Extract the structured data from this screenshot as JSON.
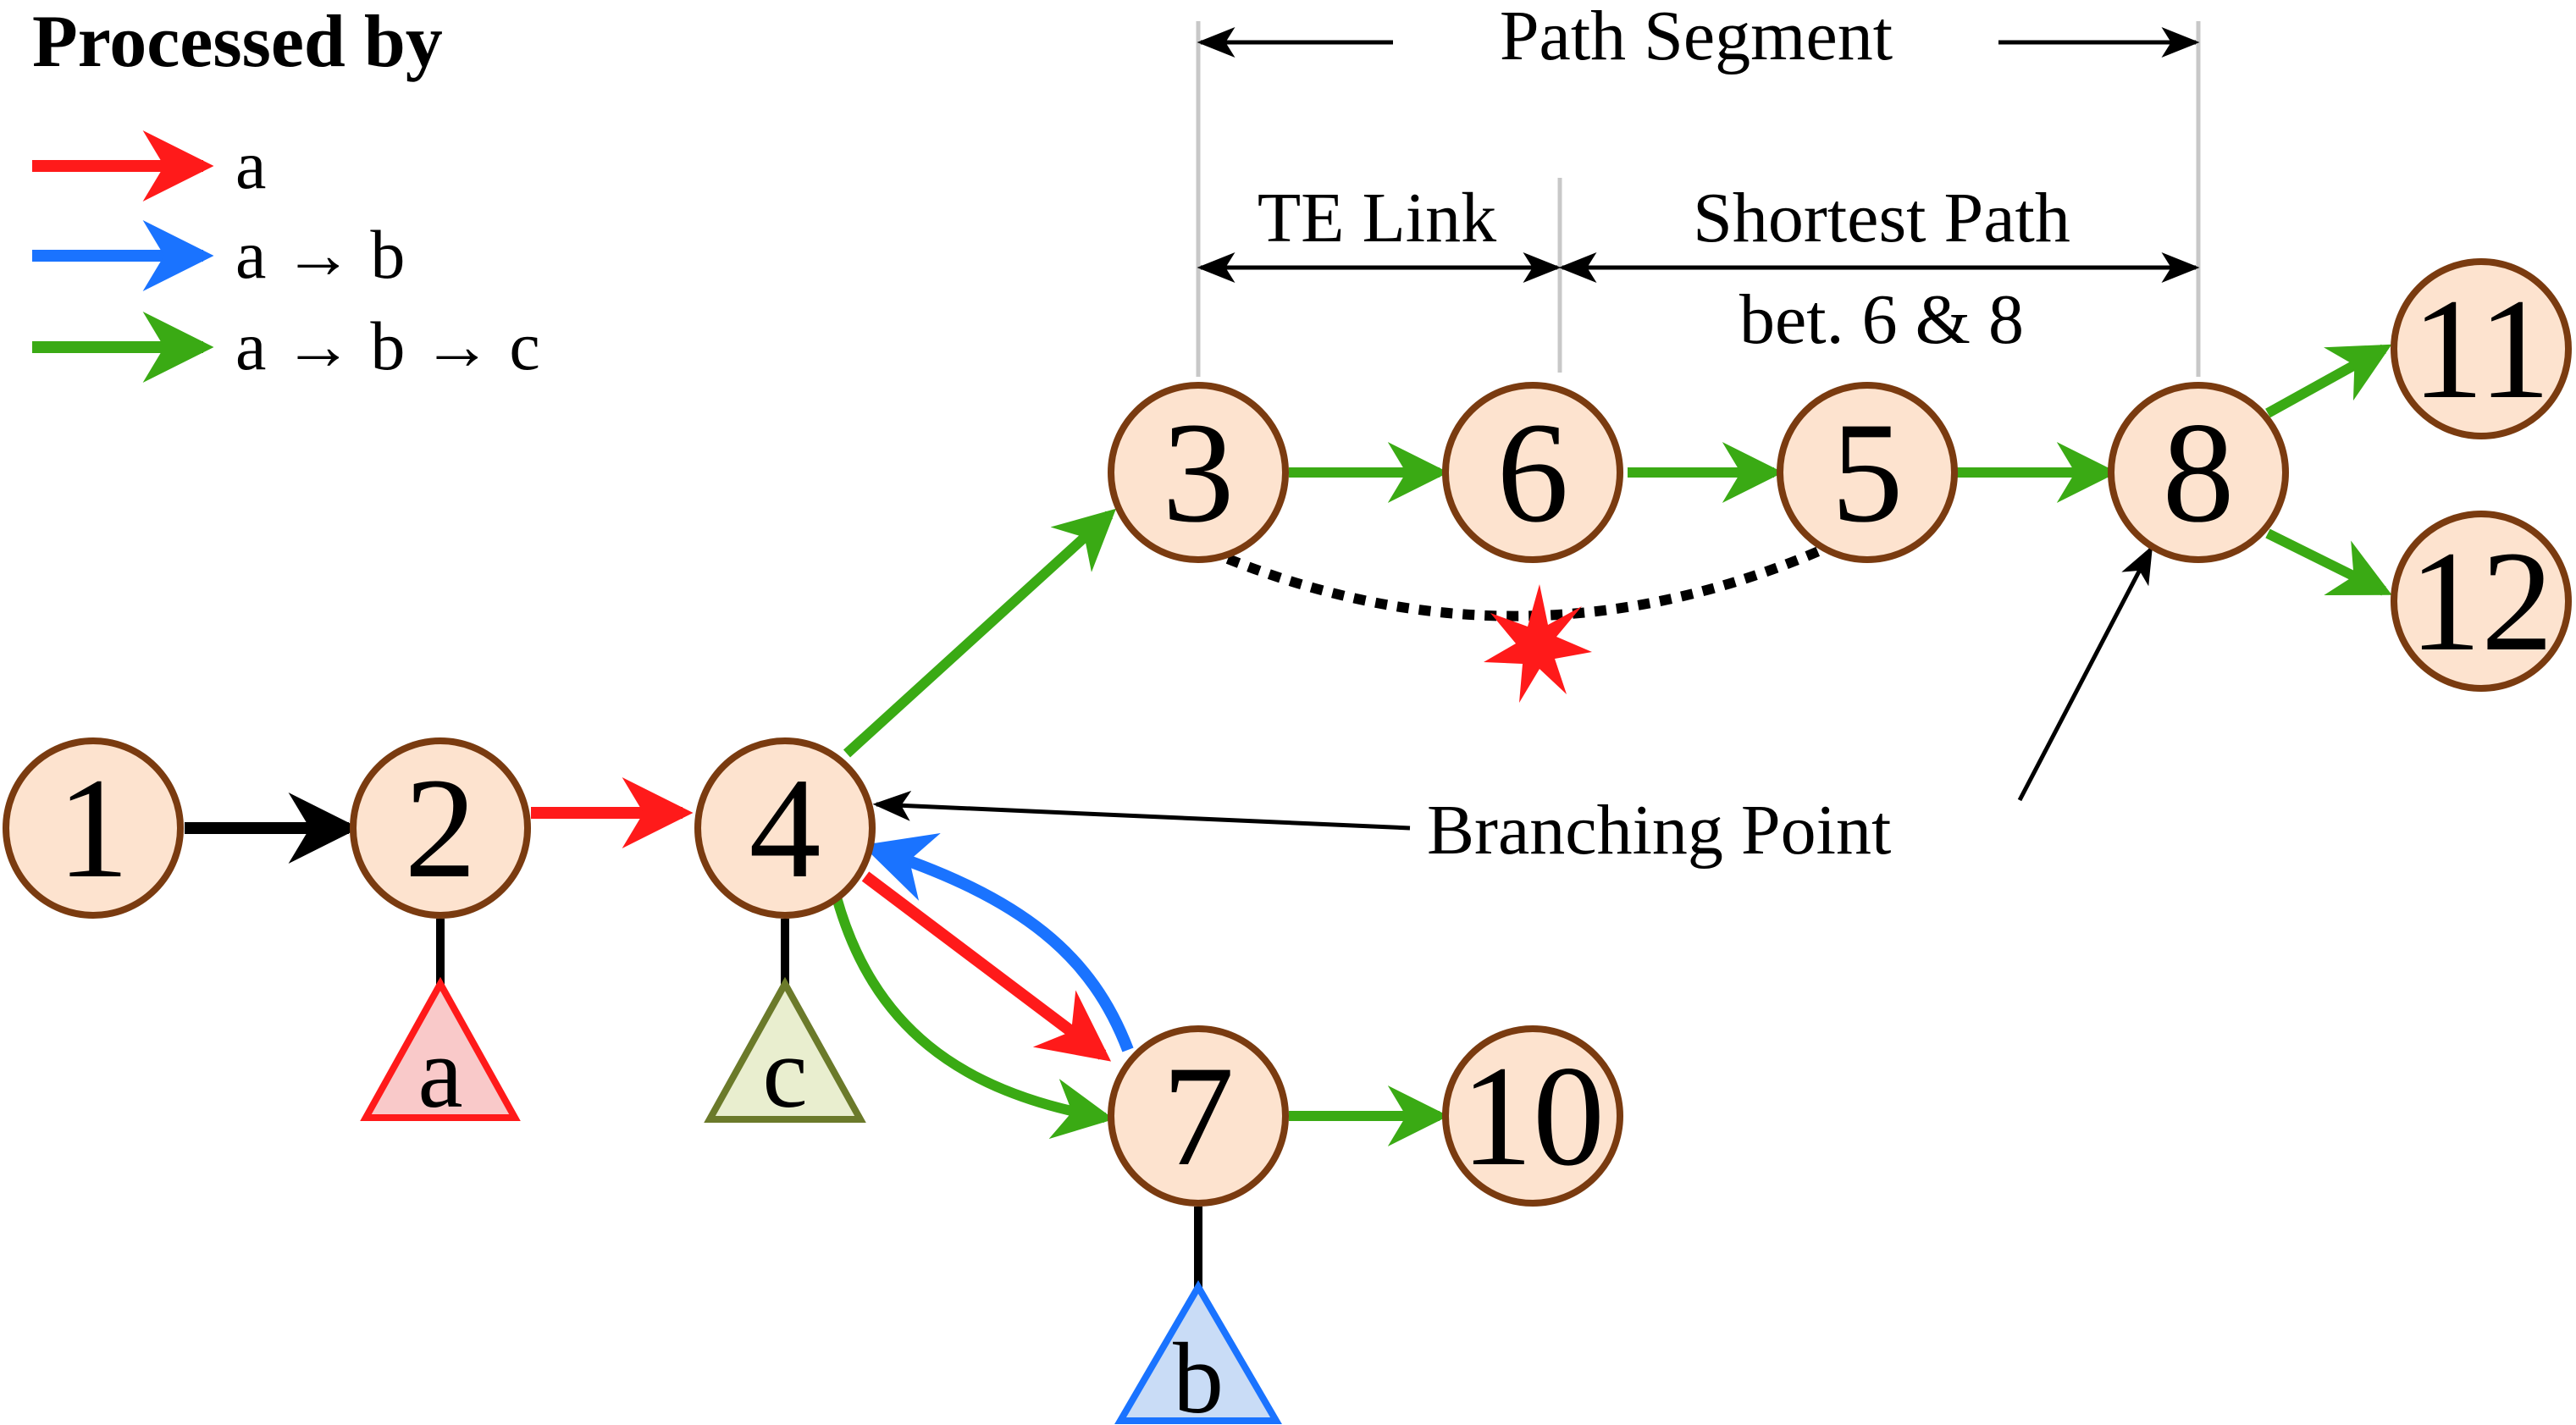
{
  "legend": {
    "title": "Processed by",
    "items": [
      {
        "label": "a",
        "color": "#ff1a1a"
      },
      {
        "label": "a → b",
        "color": "#1a73ff"
      },
      {
        "label": "a → b → c",
        "color": "#3aaa14"
      }
    ]
  },
  "nodes": [
    {
      "id": "n1",
      "label": "1"
    },
    {
      "id": "n2",
      "label": "2"
    },
    {
      "id": "n3",
      "label": "3"
    },
    {
      "id": "n4",
      "label": "4"
    },
    {
      "id": "n5",
      "label": "5"
    },
    {
      "id": "n6",
      "label": "6"
    },
    {
      "id": "n7",
      "label": "7"
    },
    {
      "id": "n8",
      "label": "8"
    },
    {
      "id": "n10",
      "label": "10"
    },
    {
      "id": "n11",
      "label": "11"
    },
    {
      "id": "n12",
      "label": "12"
    }
  ],
  "clients": [
    {
      "label": "a",
      "fill": "#f9c9c9",
      "stroke": "#ff1a1a"
    },
    {
      "label": "c",
      "fill": "#e9eecf",
      "stroke": "#6b7a2a"
    },
    {
      "label": "b",
      "fill": "#c9dcf6",
      "stroke": "#1a73ff"
    }
  ],
  "annotations": {
    "path_segment": "Path Segment",
    "te_link": "TE Link",
    "shortest_path_line1": "Shortest Path",
    "shortest_path_line2": "bet. 6 & 8",
    "branching_point": "Branching Point"
  },
  "colors": {
    "red": "#ff1a1a",
    "blue": "#1a73ff",
    "green": "#3aaa14",
    "black": "#000000",
    "node_fill": "#fde3cf",
    "node_stroke": "#7a3b10"
  }
}
